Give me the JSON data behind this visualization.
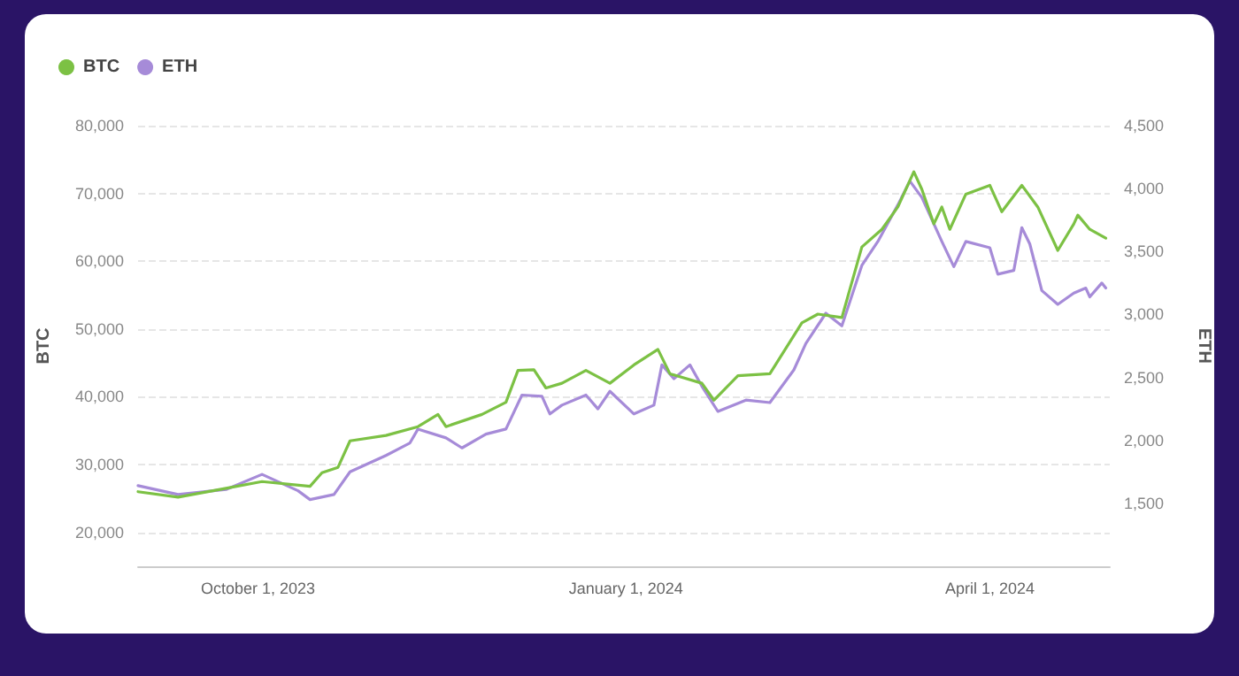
{
  "chart_data": {
    "type": "line",
    "ylabel": "BTC",
    "y2label": "ETH",
    "legend": "top left",
    "grid": "y",
    "marker": "none",
    "line_style": "solid",
    "xlim": [
      "2023-09-01",
      "2024-05-01"
    ],
    "xticks": [
      {
        "value": "2023-10-01",
        "label": "October 1, 2023"
      },
      {
        "value": "2024-01-01",
        "label": "January 1, 2024"
      },
      {
        "value": "2024-04-01",
        "label": "April 1, 2024"
      }
    ],
    "ylim": [
      15000,
      80000
    ],
    "yticks": [
      {
        "value": 20000,
        "label": "20,000"
      },
      {
        "value": 30000,
        "label": "30,000"
      },
      {
        "value": 40000,
        "label": "40,000"
      },
      {
        "value": 50000,
        "label": "50,000"
      },
      {
        "value": 60000,
        "label": "60,000"
      },
      {
        "value": 70000,
        "label": "70,000"
      },
      {
        "value": 80000,
        "label": "80,000"
      }
    ],
    "y2lim": [
      1000,
      4500
    ],
    "y2ticks": [
      {
        "value": 1500,
        "label": "1,500"
      },
      {
        "value": 2000,
        "label": "2,000"
      },
      {
        "value": 2500,
        "label": "2,500"
      },
      {
        "value": 3000,
        "label": "3,000"
      },
      {
        "value": 3500,
        "label": "3,500"
      },
      {
        "value": 4000,
        "label": "4,000"
      },
      {
        "value": 4500,
        "label": "4,500"
      }
    ],
    "series": [
      {
        "name": "BTC",
        "color": "#7cc144",
        "x": [
          "2023-09-01",
          "2023-09-11",
          "2023-09-23",
          "2023-10-02",
          "2023-10-14",
          "2023-10-17",
          "2023-10-21",
          "2023-10-24",
          "2023-11-02",
          "2023-11-10",
          "2023-11-15",
          "2023-11-17",
          "2023-11-26",
          "2023-12-02",
          "2023-12-05",
          "2023-12-09",
          "2023-12-12",
          "2023-12-16",
          "2023-12-22",
          "2023-12-28",
          "2024-01-03",
          "2024-01-09",
          "2024-01-12",
          "2024-01-20",
          "2024-01-23",
          "2024-01-29",
          "2024-02-06",
          "2024-02-14",
          "2024-02-18",
          "2024-02-24",
          "2024-02-29",
          "2024-03-05",
          "2024-03-09",
          "2024-03-13",
          "2024-03-15",
          "2024-03-18",
          "2024-03-20",
          "2024-03-22",
          "2024-03-26",
          "2024-04-01",
          "2024-04-04",
          "2024-04-09",
          "2024-04-13",
          "2024-04-18",
          "2024-04-22",
          "2024-04-23",
          "2024-04-26",
          "2024-04-30"
        ],
        "values": [
          26000,
          25200,
          26500,
          27500,
          26800,
          28800,
          29600,
          33500,
          34300,
          35600,
          37400,
          35600,
          37400,
          39200,
          43900,
          44000,
          41300,
          42000,
          43900,
          42000,
          44700,
          47000,
          43400,
          42000,
          39500,
          43100,
          43400,
          50900,
          52200,
          51700,
          62100,
          64700,
          68000,
          73200,
          70600,
          65500,
          68000,
          64700,
          69900,
          71200,
          67300,
          71200,
          68000,
          61600,
          65500,
          66800,
          64700,
          63400
        ]
      },
      {
        "name": "ETH",
        "color": "#a68bd8",
        "axis": "y2",
        "x": [
          "2023-09-01",
          "2023-09-11",
          "2023-09-23",
          "2023-10-02",
          "2023-10-11",
          "2023-10-14",
          "2023-10-20",
          "2023-10-24",
          "2023-11-02",
          "2023-11-08",
          "2023-11-10",
          "2023-11-17",
          "2023-11-21",
          "2023-11-27",
          "2023-12-02",
          "2023-12-06",
          "2023-12-11",
          "2023-12-13",
          "2023-12-16",
          "2023-12-22",
          "2023-12-25",
          "2023-12-28",
          "2024-01-03",
          "2024-01-08",
          "2024-01-10",
          "2024-01-13",
          "2024-01-17",
          "2024-01-20",
          "2024-01-24",
          "2024-01-31",
          "2024-02-06",
          "2024-02-12",
          "2024-02-15",
          "2024-02-20",
          "2024-02-24",
          "2024-02-29",
          "2024-03-04",
          "2024-03-09",
          "2024-03-12",
          "2024-03-15",
          "2024-03-20",
          "2024-03-23",
          "2024-03-26",
          "2024-04-01",
          "2024-04-03",
          "2024-04-07",
          "2024-04-09",
          "2024-04-11",
          "2024-04-14",
          "2024-04-18",
          "2024-04-22",
          "2024-04-25",
          "2024-04-26",
          "2024-04-29",
          "2024-04-30"
        ],
        "values": [
          1640,
          1570,
          1610,
          1730,
          1600,
          1530,
          1570,
          1750,
          1880,
          1980,
          2090,
          2020,
          1940,
          2050,
          2090,
          2360,
          2350,
          2210,
          2280,
          2360,
          2250,
          2390,
          2210,
          2280,
          2600,
          2490,
          2600,
          2430,
          2230,
          2320,
          2300,
          2560,
          2770,
          3010,
          2910,
          3390,
          3580,
          3870,
          4060,
          3930,
          3580,
          3380,
          3580,
          3530,
          3320,
          3350,
          3690,
          3560,
          3190,
          3080,
          3170,
          3210,
          3140,
          3250,
          3210
        ]
      }
    ]
  }
}
